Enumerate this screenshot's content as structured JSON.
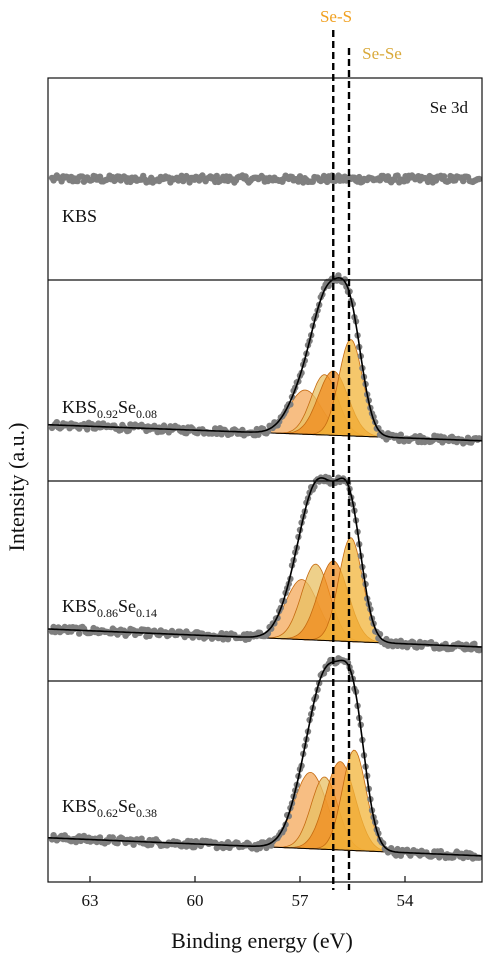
{
  "chart_data": {
    "type": "scatter",
    "subtype": "stacked-xps-spectra",
    "title": "",
    "xlabel": "Binding energy (eV)",
    "ylabel": "Intensity (a.u.)",
    "xlim": [
      64.2,
      51.8
    ],
    "x_reversed": true,
    "xticks": [
      63,
      60,
      57,
      54
    ],
    "corner_label": "Se 3d",
    "reference_lines": [
      {
        "label": "Se-S",
        "x": 56.05,
        "color": "#f0a020",
        "style": "dashed"
      },
      {
        "label": "Se-Se",
        "x": 55.6,
        "color": "#d9a93a",
        "style": "dashed"
      }
    ],
    "panels": [
      {
        "label_base": "KBS",
        "sub1": "",
        "mid": "",
        "sub2": "",
        "baseline_left": 0.5,
        "baseline_right": 0.5,
        "peaks": []
      },
      {
        "label_base": "KBS",
        "sub1": "0.92",
        "mid": "Se",
        "sub2": "0.08",
        "baseline_left": 0.28,
        "baseline_right": 0.2,
        "peaks": [
          {
            "center": 56.85,
            "fwhm": 1.1,
            "height": 0.22,
            "color": "#f4a85a"
          },
          {
            "center": 56.3,
            "fwhm": 0.9,
            "height": 0.3,
            "color": "#e8c063"
          },
          {
            "center": 56.05,
            "fwhm": 1.0,
            "height": 0.32,
            "color": "#f08c1e"
          },
          {
            "center": 55.55,
            "fwhm": 0.8,
            "height": 0.48,
            "color": "#f2b43a"
          }
        ]
      },
      {
        "label_base": "KBS",
        "sub1": "0.86",
        "mid": "Se",
        "sub2": "0.14",
        "baseline_left": 0.26,
        "baseline_right": 0.17,
        "peaks": [
          {
            "center": 56.95,
            "fwhm": 1.1,
            "height": 0.3,
            "color": "#f4a85a"
          },
          {
            "center": 56.55,
            "fwhm": 0.95,
            "height": 0.38,
            "color": "#e8c063"
          },
          {
            "center": 56.05,
            "fwhm": 1.0,
            "height": 0.4,
            "color": "#f08c1e"
          },
          {
            "center": 55.55,
            "fwhm": 0.8,
            "height": 0.52,
            "color": "#f2b43a"
          }
        ]
      },
      {
        "label_base": "KBS",
        "sub1": "0.62",
        "mid": "Se",
        "sub2": "0.38",
        "baseline_left": 0.22,
        "baseline_right": 0.13,
        "peaks": [
          {
            "center": 56.7,
            "fwhm": 1.1,
            "height": 0.38,
            "color": "#f4a85a"
          },
          {
            "center": 56.3,
            "fwhm": 0.9,
            "height": 0.36,
            "color": "#e8c063"
          },
          {
            "center": 55.85,
            "fwhm": 1.0,
            "height": 0.44,
            "color": "#f08c1e"
          },
          {
            "center": 55.45,
            "fwhm": 0.8,
            "height": 0.5,
            "color": "#f2b43a"
          }
        ]
      }
    ],
    "colors": {
      "data_points": "#7f7f7f",
      "fit_envelope": "#000000",
      "background_line": "#000000"
    }
  }
}
